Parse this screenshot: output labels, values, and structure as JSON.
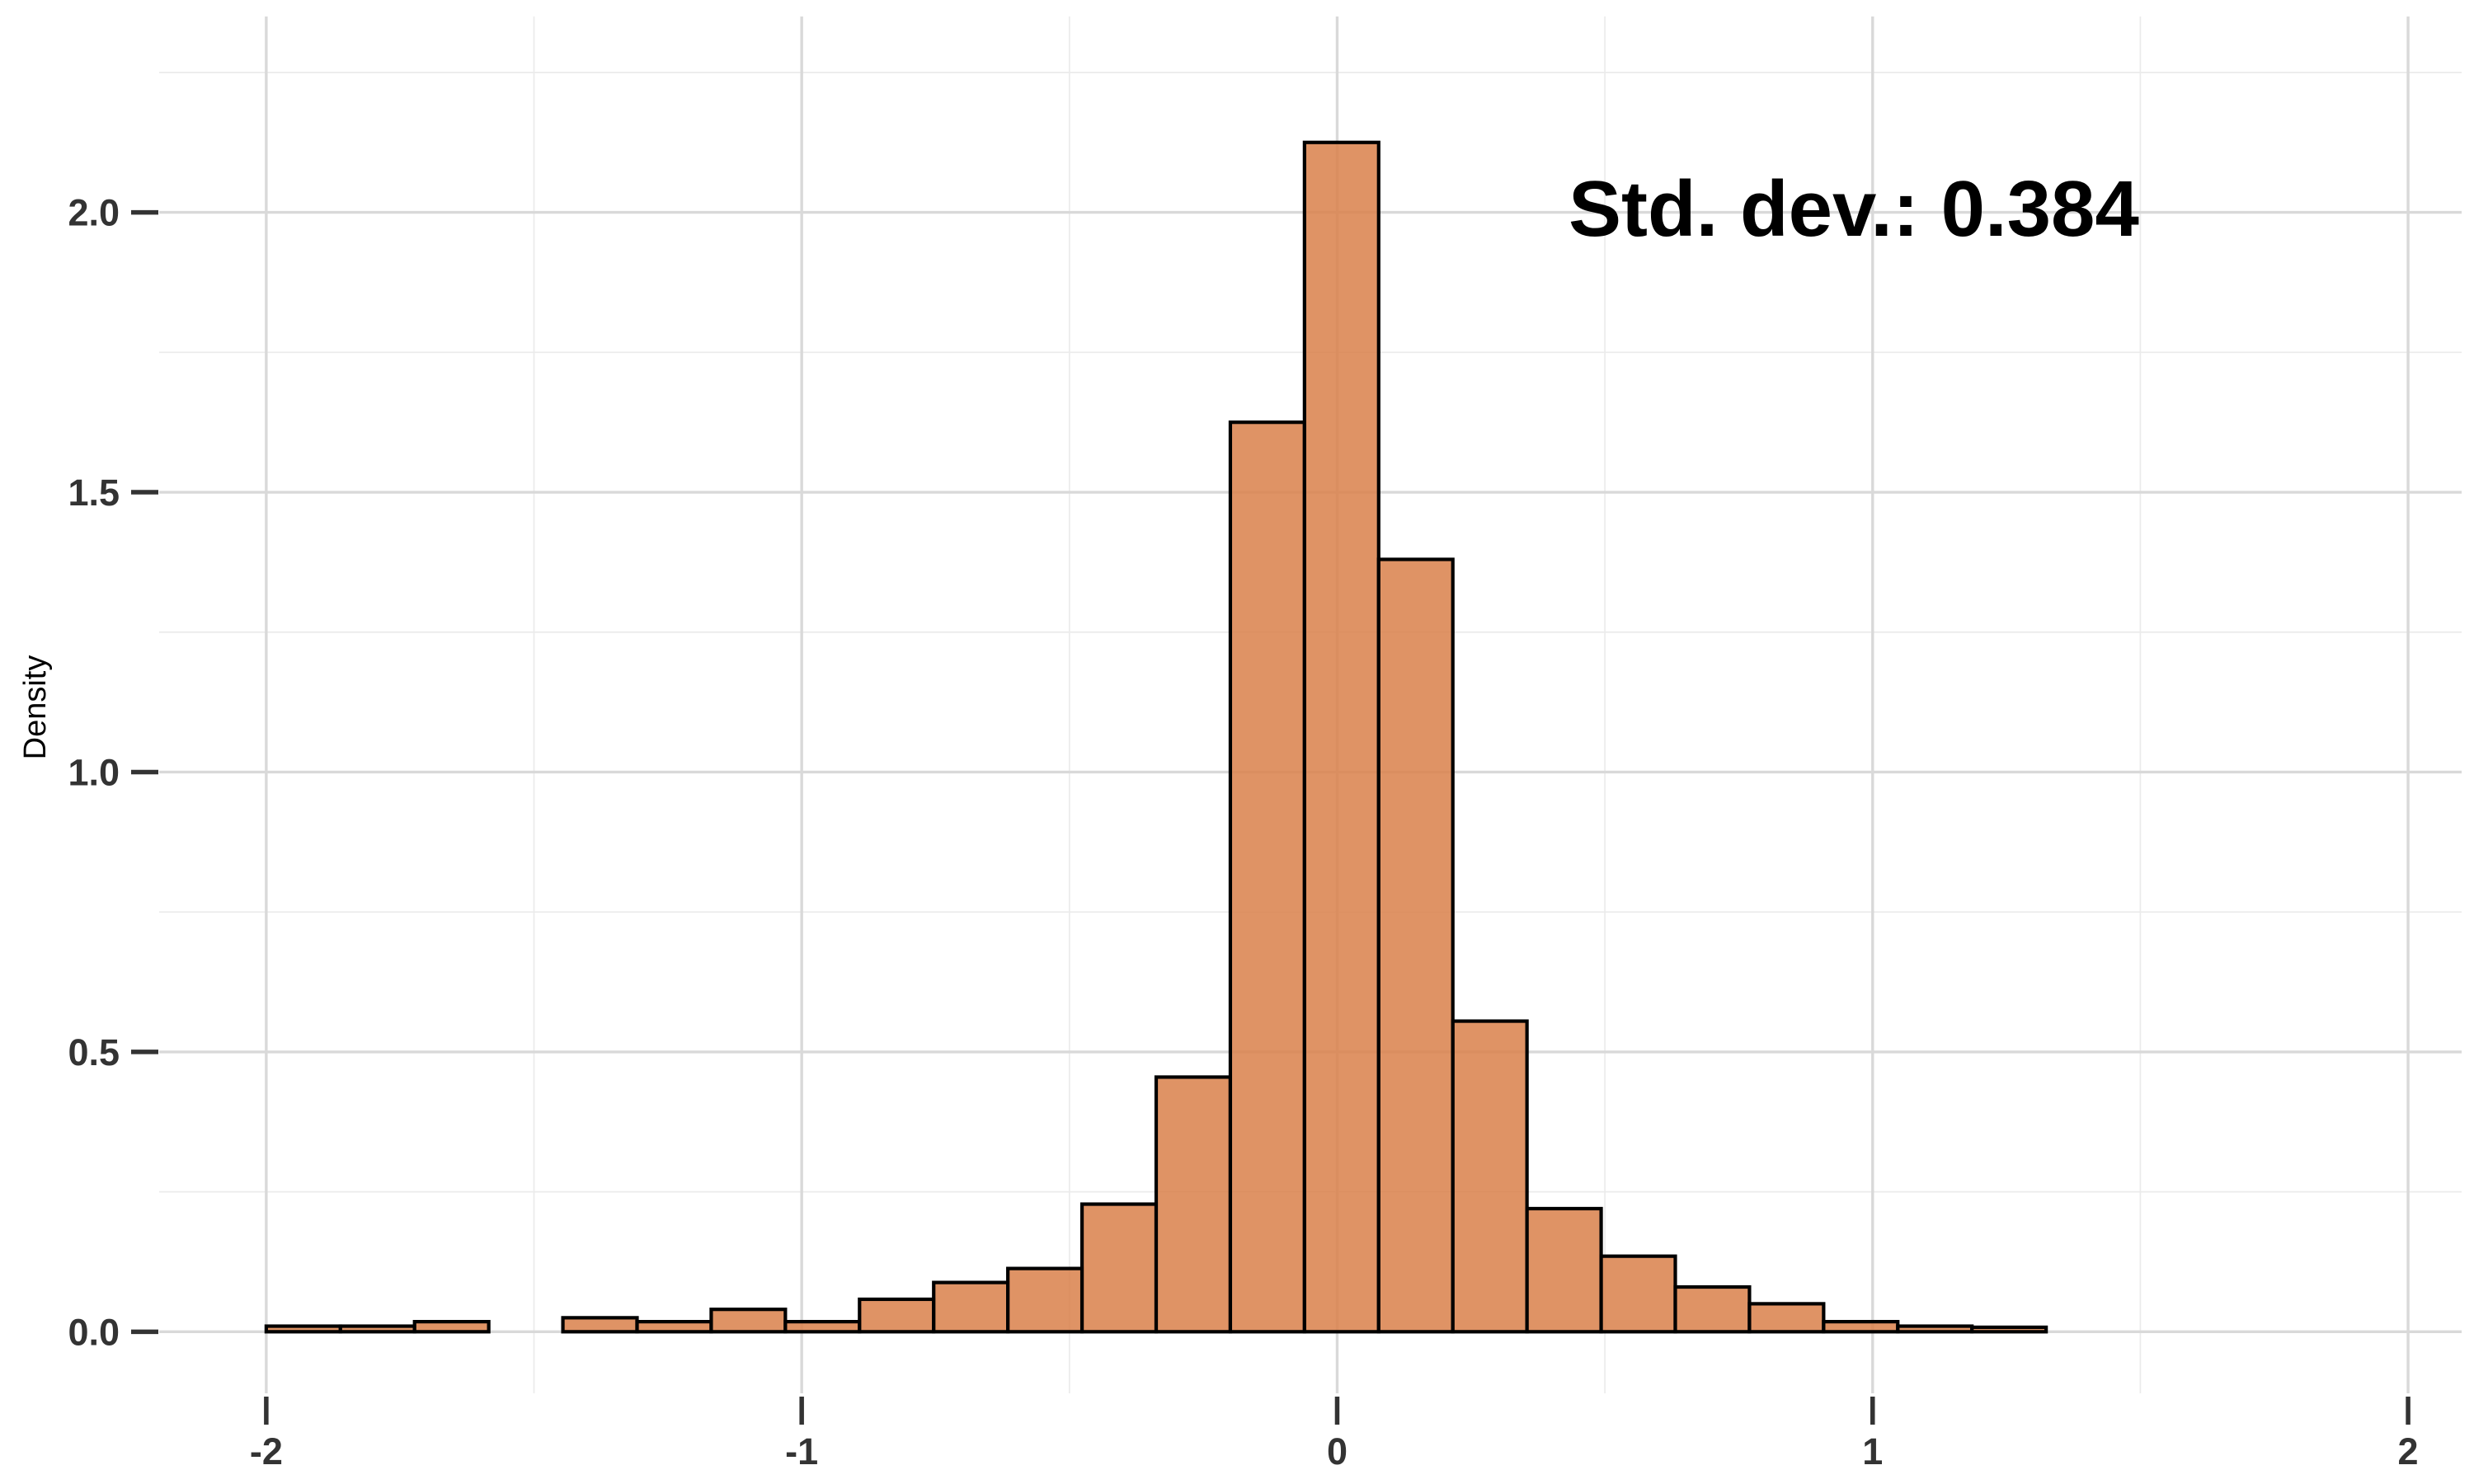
{
  "chart_data": {
    "type": "bar",
    "subtype": "histogram",
    "title": "",
    "xlabel": "",
    "ylabel": "Density",
    "xlim": [
      -2.2,
      2.1
    ],
    "ylim": [
      -0.11,
      2.35
    ],
    "x_major_ticks": [
      -2,
      -1,
      0,
      1,
      2
    ],
    "x_tick_labels": [
      "-2",
      "-1",
      "0",
      "1",
      "2"
    ],
    "x_minor_ticks": [
      -1.5,
      -0.5,
      0.5,
      1.5
    ],
    "y_major_ticks": [
      0,
      0.5,
      1,
      1.5,
      2
    ],
    "y_tick_labels": [
      "0.0",
      "0.5",
      "1.0",
      "1.5",
      "2.0"
    ],
    "y_minor_ticks": [
      0.25,
      0.75,
      1.25,
      1.75,
      2.25
    ],
    "grid": true,
    "bin_width": 0.1385,
    "bin_edges": [
      -2.0,
      -1.8615,
      -1.723,
      -1.5845,
      -1.446,
      -1.3075,
      -1.169,
      -1.0305,
      -0.892,
      -0.7535,
      -0.615,
      -0.4765,
      -0.338,
      -0.1995,
      -0.061,
      0.0775,
      0.216,
      0.3545,
      0.493,
      0.6315,
      0.77,
      0.9085,
      1.047,
      1.1855,
      1.324,
      1.4625,
      1.601,
      1.7395,
      1.878
    ],
    "values": [
      0.01,
      0.01,
      0.018,
      0.0,
      0.025,
      0.018,
      0.04,
      0.018,
      0.058,
      0.088,
      0.113,
      0.228,
      0.455,
      1.625,
      2.125,
      1.38,
      0.555,
      0.22,
      0.135,
      0.08,
      0.05,
      0.018,
      0.01,
      0.008,
      0.0,
      0.0,
      0.0,
      0.0
    ],
    "colors": {
      "bar_fill": "#d9804a",
      "bar_edge": "#000000"
    },
    "annotations": [
      {
        "text": "Std. dev.: 0.384"
      }
    ]
  }
}
